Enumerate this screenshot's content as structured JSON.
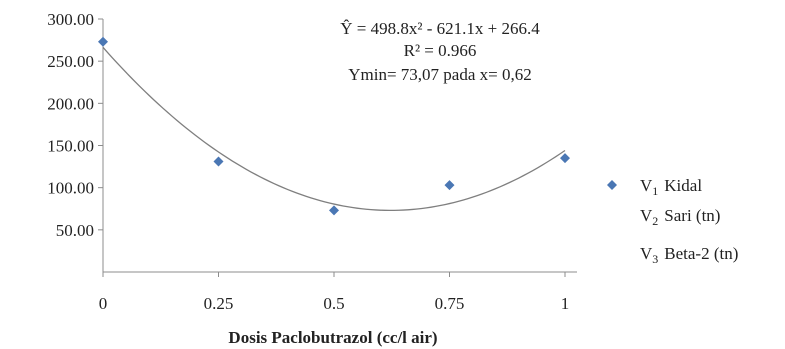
{
  "chart_data": {
    "type": "scatter",
    "xlabel": "Dosis Paclobutrazol (cc/l air)",
    "ylabel": "",
    "xlim": [
      0,
      1
    ],
    "ylim": [
      0,
      300
    ],
    "x_ticks": [
      "0",
      "0.25",
      "0.5",
      "0.75",
      "1"
    ],
    "y_ticks": [
      "300.00",
      "250.00",
      "200.00",
      "150.00",
      "100.00",
      "50.00"
    ],
    "grid": false,
    "series": [
      {
        "name": "V1 Kidal",
        "color": "#4a77b4",
        "points": [
          {
            "x": 0,
            "y": 273
          },
          {
            "x": 0.25,
            "y": 131
          },
          {
            "x": 0.5,
            "y": 73
          },
          {
            "x": 0.75,
            "y": 103
          },
          {
            "x": 1,
            "y": 135
          }
        ]
      }
    ],
    "trendline": {
      "type": "polynomial",
      "coefficients": [
        498.8,
        -621.1,
        266.4
      ],
      "color": "#7f7f7f"
    },
    "annotations": [
      "Ŷ = 498.8x² - 621.1x + 266.4",
      "R² = 0.966",
      "Ymin= 73,07 pada x= 0,62"
    ],
    "legend": {
      "placement": "right",
      "entries": [
        {
          "base": "V",
          "sub": "1",
          "text": "Kidal",
          "marker": true
        },
        {
          "base": "V",
          "sub": "2",
          "text": "Sari (tn)",
          "marker": false
        },
        {
          "base": "V",
          "sub": "3",
          "text": "Beta-2 (tn)",
          "marker": false
        }
      ]
    }
  }
}
